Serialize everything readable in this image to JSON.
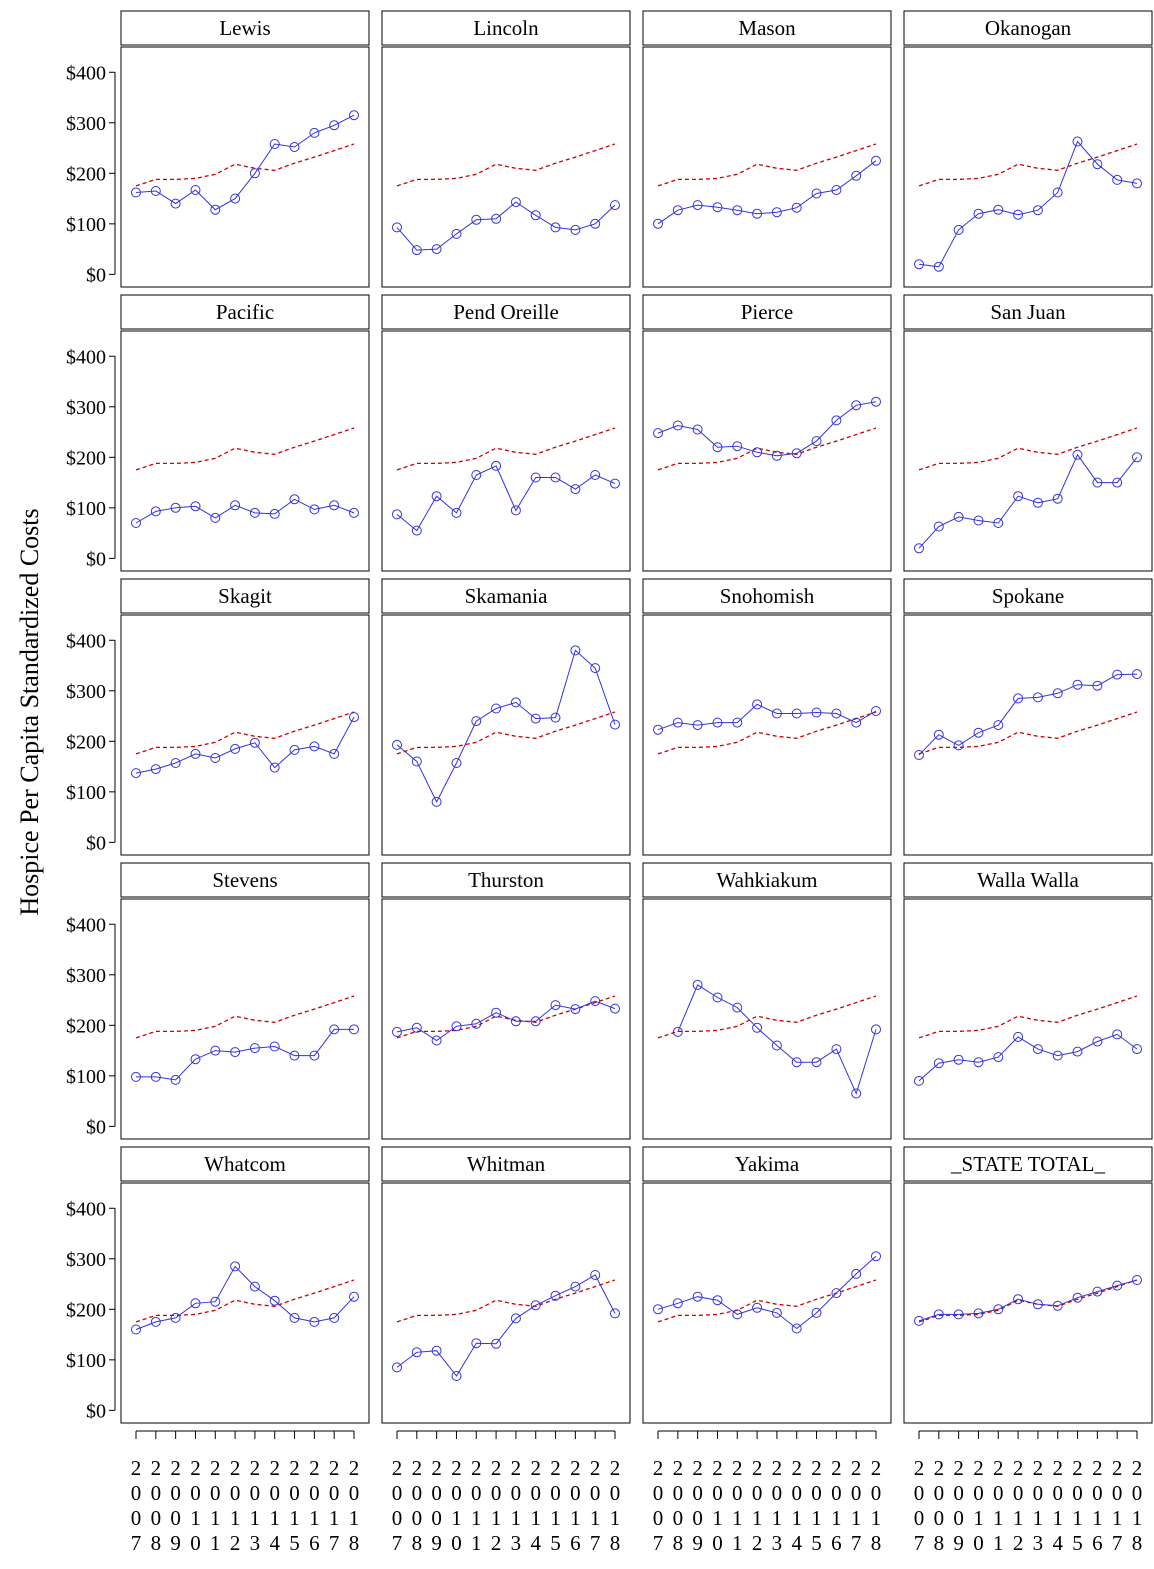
{
  "chart_data": {
    "type": "line",
    "ylabel": "Hospice Per Capita Standardized Costs",
    "xlabel": "",
    "ylim": [
      -25,
      450
    ],
    "yticks": [
      0,
      100,
      200,
      300,
      400
    ],
    "ytick_labels": [
      "$0",
      "$100",
      "$200",
      "$300",
      "$400"
    ],
    "x": [
      2007,
      2008,
      2009,
      2010,
      2011,
      2012,
      2013,
      2014,
      2015,
      2016,
      2017,
      2018
    ],
    "x_labels": [
      "2007",
      "2008",
      "2009",
      "2010",
      "2011",
      "2012",
      "2013",
      "2014",
      "2015",
      "2016",
      "2017",
      "2018"
    ],
    "reference_values": [
      175,
      188,
      188,
      190,
      198,
      218,
      210,
      206,
      220,
      232,
      245,
      258
    ],
    "colors": {
      "series": "#3333dd",
      "reference": "#cc0000"
    },
    "panels": [
      {
        "name": "Lewis",
        "values": [
          162,
          165,
          140,
          167,
          128,
          150,
          200,
          258,
          252,
          280,
          295,
          315
        ]
      },
      {
        "name": "Lincoln",
        "values": [
          93,
          48,
          50,
          80,
          108,
          110,
          143,
          117,
          93,
          88,
          100,
          137
        ]
      },
      {
        "name": "Mason",
        "values": [
          100,
          127,
          137,
          133,
          127,
          120,
          123,
          132,
          160,
          167,
          195,
          225
        ]
      },
      {
        "name": "Okanogan",
        "values": [
          20,
          15,
          88,
          120,
          128,
          118,
          127,
          162,
          263,
          218,
          187,
          180
        ]
      },
      {
        "name": "Pacific",
        "values": [
          70,
          93,
          100,
          103,
          80,
          105,
          90,
          88,
          117,
          97,
          105,
          90
        ]
      },
      {
        "name": "Pend Oreille",
        "values": [
          87,
          55,
          123,
          90,
          165,
          183,
          95,
          160,
          160,
          137,
          165,
          148
        ]
      },
      {
        "name": "Pierce",
        "values": [
          248,
          263,
          255,
          220,
          222,
          210,
          203,
          208,
          232,
          273,
          303,
          310
        ]
      },
      {
        "name": "San Juan",
        "values": [
          20,
          63,
          82,
          75,
          70,
          123,
          110,
          118,
          205,
          150,
          150,
          200
        ]
      },
      {
        "name": "Skagit",
        "values": [
          137,
          145,
          157,
          175,
          167,
          185,
          197,
          148,
          183,
          190,
          175,
          248
        ]
      },
      {
        "name": "Skamania",
        "values": [
          193,
          160,
          80,
          157,
          240,
          265,
          277,
          245,
          247,
          380,
          345,
          233
        ]
      },
      {
        "name": "Snohomish",
        "values": [
          223,
          237,
          232,
          237,
          237,
          273,
          255,
          255,
          257,
          255,
          237,
          260
        ]
      },
      {
        "name": "Spokane",
        "values": [
          173,
          213,
          192,
          217,
          232,
          285,
          287,
          295,
          312,
          310,
          332,
          333
        ]
      },
      {
        "name": "Stevens",
        "values": [
          98,
          98,
          92,
          133,
          150,
          147,
          155,
          158,
          140,
          140,
          192,
          192
        ]
      },
      {
        "name": "Thurston",
        "values": [
          187,
          195,
          170,
          198,
          203,
          225,
          208,
          208,
          240,
          232,
          248,
          233
        ]
      },
      {
        "name": "Wahkiakum",
        "values": [
          null,
          187,
          280,
          255,
          235,
          195,
          160,
          127,
          127,
          153,
          65,
          192
        ]
      },
      {
        "name": "Walla Walla",
        "values": [
          90,
          125,
          132,
          127,
          137,
          177,
          153,
          140,
          148,
          168,
          182,
          153
        ]
      },
      {
        "name": "Whatcom",
        "values": [
          160,
          175,
          183,
          212,
          215,
          285,
          245,
          217,
          183,
          175,
          183,
          225
        ]
      },
      {
        "name": "Whitman",
        "values": [
          85,
          115,
          118,
          68,
          133,
          132,
          182,
          208,
          227,
          245,
          268,
          192
        ]
      },
      {
        "name": "Yakima",
        "values": [
          200,
          212,
          225,
          218,
          190,
          203,
          193,
          162,
          193,
          232,
          270,
          305
        ]
      },
      {
        "name": "_STATE TOTAL_",
        "values": [
          177,
          190,
          190,
          192,
          200,
          220,
          210,
          207,
          223,
          235,
          247,
          258
        ]
      }
    ]
  }
}
